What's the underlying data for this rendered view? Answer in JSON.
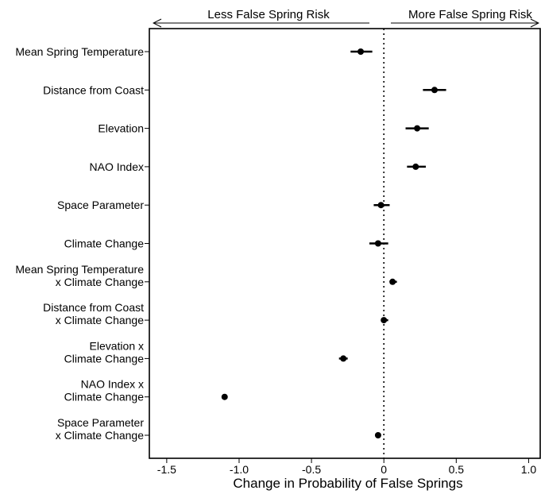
{
  "chart_data": {
    "type": "scatter",
    "subtype": "coefficient-plot",
    "xlabel": "Change in Probability of False Springs",
    "xlim": [
      -1.62,
      1.08
    ],
    "x_ticks": [
      -1.5,
      -1.0,
      -0.5,
      0,
      0.5,
      1.0
    ],
    "x_tick_labels": [
      "-1.5",
      "-1.0",
      "-0.5",
      "0",
      "0.5",
      "1.0"
    ],
    "reference_line_x": 0,
    "reference_line_style": "dotted",
    "direction_labels": {
      "left": "Less False Spring Risk",
      "right": "More False Spring Risk"
    },
    "grid": false,
    "point_color": "#000000",
    "categories": [
      [
        "Mean Spring Temperature"
      ],
      [
        "Distance from Coast"
      ],
      [
        "Elevation"
      ],
      [
        "NAO Index"
      ],
      [
        "Space Parameter"
      ],
      [
        "Climate Change"
      ],
      [
        "Mean Spring Temperature",
        "x Climate Change"
      ],
      [
        "Distance from Coast",
        "x Climate Change"
      ],
      [
        "Elevation x",
        "Climate Change"
      ],
      [
        "NAO Index x",
        "Climate Change"
      ],
      [
        "Space Parameter",
        "x Climate Change"
      ]
    ],
    "estimates": [
      -0.16,
      0.35,
      0.23,
      0.22,
      -0.02,
      -0.04,
      0.06,
      0.0,
      -0.28,
      -1.1,
      -0.04
    ],
    "ci_low": [
      -0.23,
      0.27,
      0.15,
      0.16,
      -0.07,
      -0.1,
      0.04,
      -0.02,
      -0.31,
      -1.12,
      -0.05
    ],
    "ci_high": [
      -0.08,
      0.43,
      0.31,
      0.29,
      0.04,
      0.03,
      0.09,
      0.03,
      -0.25,
      -1.08,
      -0.02
    ]
  }
}
